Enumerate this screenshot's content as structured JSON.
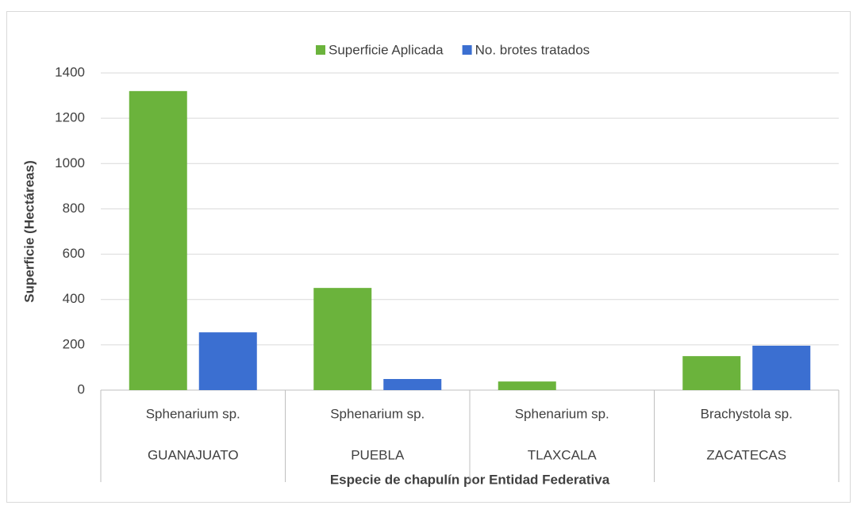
{
  "chart_data": {
    "type": "bar",
    "x_label": "Especie de chapulín por Entidad Federativa",
    "y_label": "Superficie (Hectáreas)",
    "categories": [
      "Sphenarium sp.",
      "Sphenarium sp.",
      "Sphenarium sp.",
      "Brachystola sp."
    ],
    "category_groups": [
      "GUANAJUATO",
      "PUEBLA",
      "TLAXCALA",
      "ZACATECAS"
    ],
    "series": [
      {
        "name": "Superficie Aplicada",
        "color": "#6bb33c",
        "values": [
          1320,
          451,
          38,
          150
        ]
      },
      {
        "name": "No. brotes tratados",
        "color": "#3b6fd1",
        "values": [
          255,
          49,
          0,
          196
        ]
      }
    ],
    "ylim": [
      0,
      1400
    ],
    "yticks": [
      0,
      200,
      400,
      600,
      800,
      1000,
      1200,
      1400
    ],
    "grid": true,
    "legend": "top"
  }
}
